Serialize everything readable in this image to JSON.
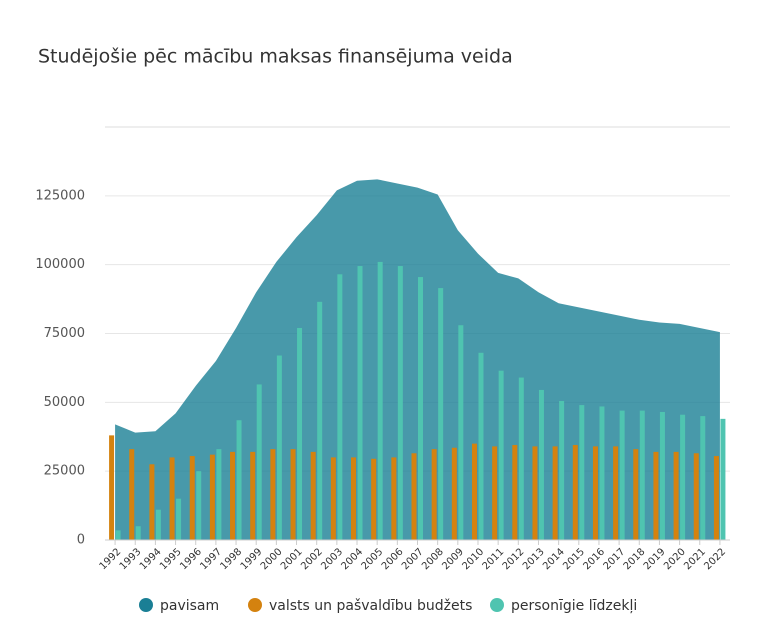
{
  "chart_data": {
    "type": "area-bar",
    "title": "Studējošie pēc mācību maksas finansējuma veida",
    "categories": [
      "1992",
      "1993",
      "1994",
      "1995",
      "1996",
      "1997",
      "1998",
      "1999",
      "2000",
      "2001",
      "2002",
      "2003",
      "2004",
      "2005",
      "2006",
      "2007",
      "2008",
      "2009",
      "2010",
      "2011",
      "2012",
      "2013",
      "2014",
      "2015",
      "2016",
      "2017",
      "2018",
      "2019",
      "2020",
      "2021",
      "2022"
    ],
    "series": [
      {
        "name": "pavisam",
        "color": "#1a7f95",
        "values": [
          42000,
          39000,
          39500,
          46000,
          56000,
          65000,
          77000,
          90000,
          101000,
          110000,
          118000,
          127000,
          130500,
          131000,
          129500,
          128000,
          125500,
          112500,
          104000,
          97000,
          95000,
          90000,
          86000,
          84500,
          83000,
          81500,
          80000,
          79000,
          78500,
          77000,
          75500
        ]
      },
      {
        "name": "valsts un pašvaldību budžets",
        "color": "#d4820f",
        "values": [
          38000,
          33000,
          27500,
          30000,
          30500,
          31000,
          32000,
          32000,
          33000,
          33000,
          32000,
          30000,
          30000,
          29500,
          30000,
          31500,
          33000,
          33500,
          35000,
          34000,
          34500,
          34000,
          34000,
          34500,
          34000,
          34000,
          33000,
          32000,
          32000,
          31500,
          30500
        ]
      },
      {
        "name": "personīgie līdzekļi",
        "color": "#4fc4b0",
        "values": [
          3500,
          5000,
          11000,
          15000,
          25000,
          33000,
          43500,
          56500,
          67000,
          77000,
          86500,
          96500,
          99500,
          101000,
          99500,
          95500,
          91500,
          78000,
          68000,
          61500,
          59000,
          54500,
          50500,
          49000,
          48500,
          47000,
          47000,
          46500,
          45500,
          45000,
          44000
        ]
      }
    ],
    "ylim": [
      0,
      150000
    ],
    "yticks": [
      0,
      25000,
      50000,
      75000,
      100000,
      125000
    ],
    "grid": true
  }
}
